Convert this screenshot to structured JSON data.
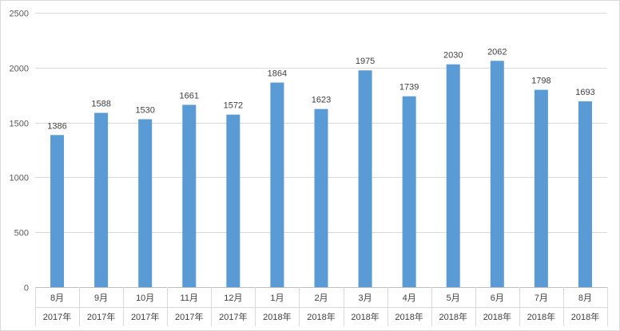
{
  "chart_data": {
    "type": "bar",
    "categories": [
      {
        "month": "8月",
        "year": "2017年"
      },
      {
        "month": "9月",
        "year": "2017年"
      },
      {
        "month": "10月",
        "year": "2017年"
      },
      {
        "month": "11月",
        "year": "2017年"
      },
      {
        "month": "12月",
        "year": "2017年"
      },
      {
        "month": "1月",
        "year": "2018年"
      },
      {
        "month": "2月",
        "year": "2018年"
      },
      {
        "month": "3月",
        "year": "2018年"
      },
      {
        "month": "4月",
        "year": "2018年"
      },
      {
        "month": "5月",
        "year": "2018年"
      },
      {
        "month": "6月",
        "year": "2018年"
      },
      {
        "month": "7月",
        "year": "2018年"
      },
      {
        "month": "8月",
        "year": "2018年"
      }
    ],
    "values": [
      1386,
      1588,
      1530,
      1661,
      1572,
      1864,
      1623,
      1975,
      1739,
      2030,
      2062,
      1798,
      1693
    ],
    "ylim": [
      0,
      2500
    ],
    "yticks": [
      0,
      500,
      1000,
      1500,
      2000,
      2500
    ],
    "grid": true,
    "bar_color": "#5b9bd5",
    "grid_color": "#d9d9d9",
    "title": "",
    "xlabel": "",
    "ylabel": ""
  }
}
